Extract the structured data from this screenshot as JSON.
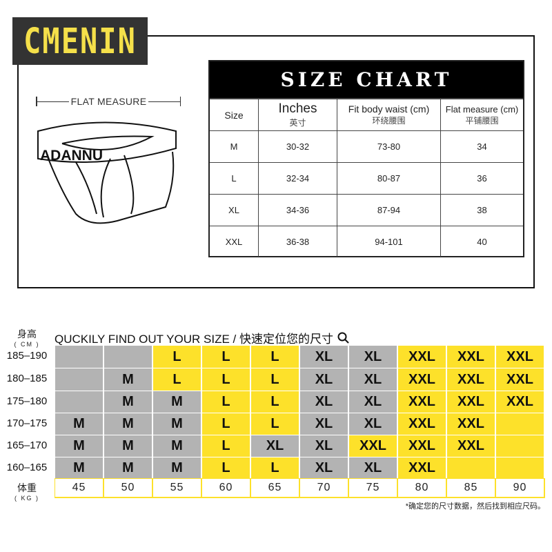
{
  "brand": {
    "logo": "CMENIN",
    "garment_print": "ADANNU"
  },
  "flat_measure_label": "FLAT  MEASURE",
  "size_chart": {
    "title": "SIZE CHART",
    "headers": [
      {
        "en": "Size",
        "zh": ""
      },
      {
        "en": "Inches",
        "zh": "英寸"
      },
      {
        "en": "Fit body waist (cm)",
        "zh": "环绕腰围"
      },
      {
        "en": "Flat measure (cm)",
        "zh": "平铺腰围"
      }
    ],
    "rows": [
      [
        "M",
        "30-32",
        "73-80",
        "34"
      ],
      [
        "L",
        "32-34",
        "80-87",
        "36"
      ],
      [
        "XL",
        "34-36",
        "87-94",
        "38"
      ],
      [
        "XXL",
        "36-38",
        "94-101",
        "40"
      ]
    ]
  },
  "finder": {
    "title": "QUCKILY FIND OUT YOUR SIZE / 快速定位您的尺寸",
    "search_icon": "magnifier-icon",
    "height_label": "身高",
    "height_unit": "( CM )",
    "weight_label": "体重",
    "weight_unit": "( KG )",
    "heights": [
      "185–190",
      "180–185",
      "175–180",
      "170–175",
      "165–170",
      "160–165"
    ],
    "weights": [
      "45",
      "50",
      "55",
      "60",
      "65",
      "70",
      "75",
      "80",
      "85",
      "90"
    ],
    "cells": [
      [
        "",
        "",
        "L",
        "L",
        "L",
        "XL",
        "XL",
        "XXL",
        "XXL",
        "XXL"
      ],
      [
        "",
        "M",
        "L",
        "L",
        "L",
        "XL",
        "XL",
        "XXL",
        "XXL",
        "XXL"
      ],
      [
        "",
        "M",
        "M",
        "L",
        "L",
        "XL",
        "XL",
        "XXL",
        "XXL",
        "XXL"
      ],
      [
        "M",
        "M",
        "M",
        "L",
        "L",
        "XL",
        "XL",
        "XXL",
        "XXL",
        ""
      ],
      [
        "M",
        "M",
        "M",
        "L",
        "XL",
        "XL",
        "XXL",
        "XXL",
        "XXL",
        ""
      ],
      [
        "M",
        "M",
        "M",
        "L",
        "L",
        "XL",
        "XL",
        "XXL",
        "",
        ""
      ]
    ],
    "colors": [
      [
        "g",
        "g",
        "y",
        "y",
        "y",
        "g",
        "g",
        "y",
        "y",
        "y"
      ],
      [
        "g",
        "g",
        "y",
        "y",
        "y",
        "g",
        "g",
        "y",
        "y",
        "y"
      ],
      [
        "g",
        "g",
        "g",
        "y",
        "y",
        "g",
        "g",
        "y",
        "y",
        "y"
      ],
      [
        "g",
        "g",
        "g",
        "y",
        "y",
        "g",
        "g",
        "y",
        "y",
        "y"
      ],
      [
        "g",
        "g",
        "g",
        "y",
        "g",
        "g",
        "y",
        "y",
        "y",
        "y"
      ],
      [
        "g",
        "g",
        "g",
        "y",
        "y",
        "g",
        "g",
        "y",
        "y",
        "y"
      ]
    ],
    "palette": {
      "y": "#fde12a",
      "g": "#b3b3b3"
    },
    "note": "*确定您的尺寸数据，然后找到相应尺码。"
  }
}
